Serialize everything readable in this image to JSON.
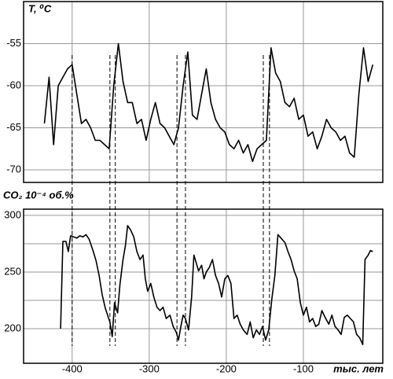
{
  "chart_data": [
    {
      "type": "line",
      "ylabel": "T, ⁰C",
      "color": "#000000",
      "xlim": [
        -463,
        3
      ],
      "xticks": [
        -400,
        -300,
        -200,
        -100
      ],
      "xtick_labels": false,
      "ylim": [
        -71.5,
        -50
      ],
      "yticks": [
        -55,
        -60,
        -65,
        -70
      ],
      "grid": true,
      "guides": [
        -400,
        -351,
        -344,
        -264,
        -253,
        -152,
        -144
      ],
      "x": [
        -436,
        -430,
        -424,
        -418,
        -412,
        -406,
        -400,
        -394,
        -388,
        -382,
        -376,
        -370,
        -364,
        -358,
        -352,
        -346,
        -340,
        -334,
        -328,
        -322,
        -316,
        -310,
        -304,
        -298,
        -292,
        -286,
        -280,
        -274,
        -268,
        -262,
        -256,
        -250,
        -244,
        -238,
        -232,
        -226,
        -220,
        -214,
        -208,
        -202,
        -196,
        -190,
        -184,
        -178,
        -172,
        -166,
        -160,
        -154,
        -148,
        -142,
        -136,
        -130,
        -124,
        -118,
        -112,
        -106,
        -100,
        -94,
        -88,
        -82,
        -76,
        -70,
        -64,
        -58,
        -52,
        -46,
        -40,
        -34,
        -28,
        -22,
        -16,
        -10
      ],
      "values": [
        -64.5,
        -59,
        -67,
        -60,
        -59,
        -58,
        -57.5,
        -61,
        -64.5,
        -64,
        -65,
        -66.5,
        -66.5,
        -67,
        -67.5,
        -60,
        -55,
        -59.5,
        -62,
        -62,
        -64.5,
        -64,
        -66.5,
        -64,
        -62,
        -64.5,
        -65,
        -66,
        -67,
        -65,
        -60,
        -56,
        -63.5,
        -64,
        -61,
        -58,
        -62,
        -64,
        -65,
        -65.5,
        -67,
        -67.5,
        -66.5,
        -68,
        -67,
        -69,
        -67.5,
        -67,
        -66.5,
        -55.5,
        -58.5,
        -59.5,
        -62,
        -62.5,
        -61.5,
        -64,
        -63.5,
        -66,
        -65.5,
        -67.5,
        -66,
        -64,
        -65,
        -65.5,
        -66.5,
        -66,
        -68,
        -68.5,
        -61,
        -55.5,
        -59.5,
        -57.5
      ]
    },
    {
      "type": "line",
      "ylabel": "CO₂ 10⁻⁴ об.%",
      "xlabel": "тыс. лет",
      "color": "#000000",
      "xlim": [
        -463,
        3
      ],
      "xticks": [
        -400,
        -300,
        -200,
        -100
      ],
      "xtick_labels": true,
      "ylim": [
        169.5,
        305.5
      ],
      "yticks": [
        300,
        250,
        200
      ],
      "minor_yticks": [
        275,
        225
      ],
      "grid": true,
      "x": [
        -415,
        -412,
        -408,
        -405,
        -402,
        -398,
        -394,
        -390,
        -386,
        -382,
        -378,
        -373,
        -369,
        -365,
        -361,
        -357,
        -351,
        -348,
        -345,
        -341,
        -338,
        -334,
        -331,
        -328,
        -324,
        -320,
        -316,
        -312,
        -308,
        -305,
        -302,
        -298,
        -294,
        -290,
        -286,
        -282,
        -278,
        -273,
        -269,
        -265,
        -262,
        -259,
        -256,
        -253,
        -249,
        -245,
        -242,
        -239,
        -236,
        -232,
        -229,
        -226,
        -222,
        -218,
        -214,
        -210,
        -206,
        -202,
        -198,
        -194,
        -190,
        -186,
        -182,
        -178,
        -173,
        -169,
        -165,
        -161,
        -157,
        -153,
        -149,
        -145,
        -141,
        -137,
        -133,
        -129,
        -124,
        -120,
        -116,
        -112,
        -108,
        -104,
        -100,
        -96,
        -92,
        -88,
        -84,
        -80,
        -76,
        -71,
        -67,
        -63,
        -59,
        -55,
        -51,
        -47,
        -43,
        -39,
        -35,
        -31,
        -27,
        -23,
        -20,
        -16,
        -13,
        -10
      ],
      "values": [
        200,
        277,
        277,
        268,
        282,
        281,
        280,
        282,
        281,
        283,
        279,
        269,
        260,
        247,
        230,
        218,
        206,
        193,
        223,
        214,
        239,
        261,
        273,
        291,
        287,
        281,
        268,
        261,
        265,
        244,
        233,
        240,
        228,
        219,
        216,
        219,
        209,
        212,
        202,
        197,
        190,
        202,
        212,
        209,
        199,
        228,
        265,
        258,
        251,
        256,
        244,
        250,
        254,
        261,
        247,
        240,
        228,
        244,
        247,
        240,
        209,
        212,
        204,
        199,
        195,
        206,
        192,
        199,
        195,
        202,
        190,
        199,
        226,
        247,
        283,
        280,
        276,
        268,
        261,
        251,
        244,
        223,
        212,
        219,
        206,
        209,
        202,
        204,
        216,
        209,
        204,
        212,
        202,
        199,
        195,
        210,
        212,
        209,
        206,
        195,
        192,
        186,
        261,
        265,
        269,
        268
      ]
    }
  ]
}
